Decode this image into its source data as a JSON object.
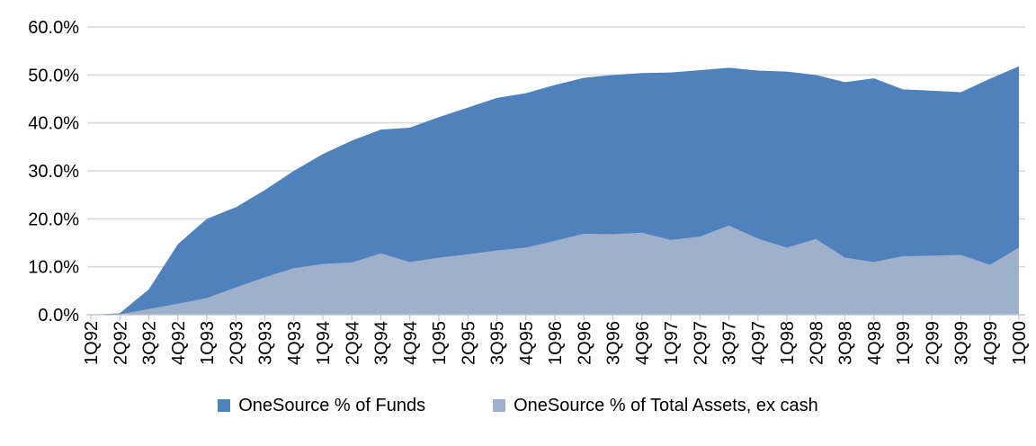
{
  "chart_data": {
    "type": "area",
    "overlapping": true,
    "categories": [
      "1Q92",
      "2Q92",
      "3Q92",
      "4Q92",
      "1Q93",
      "2Q93",
      "3Q93",
      "4Q93",
      "1Q94",
      "2Q94",
      "3Q94",
      "4Q94",
      "1Q95",
      "2Q95",
      "3Q95",
      "4Q95",
      "1Q96",
      "2Q96",
      "3Q96",
      "4Q96",
      "1Q97",
      "2Q97",
      "3Q97",
      "4Q97",
      "1Q98",
      "2Q98",
      "3Q98",
      "4Q98",
      "1Q99",
      "2Q99",
      "3Q99",
      "4Q99",
      "1Q00"
    ],
    "series": [
      {
        "name": "OneSource % of Funds",
        "color": "#4f81bd",
        "values": [
          0.0,
          0.3,
          5.3,
          14.7,
          20.0,
          22.4,
          26.0,
          30.0,
          33.5,
          36.3,
          38.6,
          39.0,
          41.2,
          43.2,
          45.2,
          46.2,
          47.9,
          49.4,
          50.0,
          50.4,
          50.5,
          51.0,
          51.5,
          50.9,
          50.7,
          50.0,
          48.5,
          49.3,
          47.0,
          46.7,
          46.4,
          49.2,
          51.8
        ]
      },
      {
        "name": "OneSource % of Total Assets, ex cash",
        "color": "#9fb0cc",
        "values": [
          0.0,
          0.1,
          1.2,
          2.3,
          3.5,
          5.7,
          7.8,
          9.7,
          10.6,
          10.9,
          12.8,
          11.0,
          11.9,
          12.6,
          13.4,
          14.0,
          15.4,
          16.9,
          16.8,
          17.1,
          15.6,
          16.3,
          18.6,
          15.9,
          14.0,
          15.8,
          11.9,
          11.0,
          12.2,
          12.3,
          12.5,
          10.4,
          14.0
        ]
      }
    ],
    "title": "",
    "xlabel": "",
    "ylabel": "",
    "ylim": [
      0,
      60
    ],
    "y_ticks": [
      0,
      10,
      20,
      30,
      40,
      50,
      60
    ],
    "y_tick_labels": [
      "0.0%",
      "10.0%",
      "20.0%",
      "30.0%",
      "40.0%",
      "50.0%",
      "60.0%"
    ],
    "grid": "horizontal",
    "legend_position": "bottom",
    "colors": {
      "gridline": "#d9d9d9",
      "axis_line": "#c6c6c6",
      "tick_mark": "#c6c6c6",
      "text": "#000000",
      "background": "#ffffff"
    }
  }
}
